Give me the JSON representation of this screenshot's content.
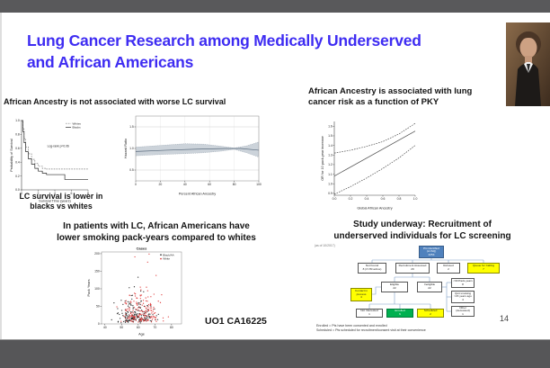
{
  "window": {
    "top_bar_color": "#59595b",
    "bottom_bar_color": "#565658",
    "slide_background": "#ffffff"
  },
  "slide": {
    "title_line1": "Lung Cancer Research among Medically Underserved",
    "title_line2": "and African Americans",
    "title_color": "#3e2cf2",
    "grant_label": "UO1 CA16225",
    "page_number": "14"
  },
  "sections": {
    "survival": {
      "heading": "African Ancestry is not associated with worse LC survival",
      "caption_line1": "LC survival is lower in",
      "caption_line2": "blacks vs whites"
    },
    "risk": {
      "heading_line1": "African Ancestry is associated with lung",
      "heading_line2": "cancer risk as a function of PKY"
    },
    "packyears": {
      "heading_line1": "In patients with LC, African Americans have",
      "heading_line2": "lower smoking pack-years compared to whites"
    },
    "recruitment": {
      "heading_line1": "Study underway: Recruitment of",
      "heading_line2": "underserved individuals for LC screening",
      "corner_note": "(as of 10/2017)",
      "footnote_line1": "Enrolled = Pts have been consented and enrolled",
      "footnote_line2": "Scheduled = Pts scheduled for recruitment/consent visit at their convenience"
    }
  },
  "chart_data": [
    {
      "id": "km",
      "type": "line",
      "step": true,
      "title": "",
      "xlabel": "Survival Time (years)",
      "ylabel": "Probability of Survival",
      "xlim": [
        0,
        8
      ],
      "ylim": [
        0,
        1
      ],
      "xticks": [
        0,
        2,
        4,
        6,
        8
      ],
      "yticks": [
        0,
        0.2,
        0.4,
        0.6,
        0.8,
        1
      ],
      "fmt": {
        "x": 0,
        "y": 1
      },
      "grid": false,
      "annotation": "Log-rank p=0.06",
      "legend_position": "top-right",
      "series": [
        {
          "name": "Whites",
          "style": "dashed",
          "color": "#7a7a7a",
          "points": [
            [
              0,
              1
            ],
            [
              0.15,
              0.88
            ],
            [
              0.3,
              0.74
            ],
            [
              0.5,
              0.62
            ],
            [
              0.8,
              0.52
            ],
            [
              1.2,
              0.44
            ],
            [
              1.6,
              0.38
            ],
            [
              2,
              0.34
            ],
            [
              2.5,
              0.31
            ],
            [
              3,
              0.3
            ],
            [
              8,
              0.3
            ]
          ]
        },
        {
          "name": "Blacks",
          "style": "solid",
          "color": "#2b2b2b",
          "points": [
            [
              0,
              1
            ],
            [
              0.15,
              0.84
            ],
            [
              0.3,
              0.68
            ],
            [
              0.5,
              0.55
            ],
            [
              0.8,
              0.45
            ],
            [
              1.2,
              0.37
            ],
            [
              1.6,
              0.31
            ],
            [
              2,
              0.27
            ],
            [
              2.5,
              0.24
            ],
            [
              3,
              0.22
            ],
            [
              5.2,
              0.15
            ],
            [
              8,
              0.15
            ]
          ]
        }
      ]
    },
    {
      "id": "hr",
      "type": "line",
      "title": "",
      "xlabel": "Percent African Ancestry",
      "ylabel": "Hazard Ratio",
      "xlim": [
        0,
        100
      ],
      "ylim": [
        0.25,
        1.75
      ],
      "xticks": [
        0,
        20,
        40,
        60,
        80,
        100
      ],
      "yticks": [
        0.5,
        1.0,
        1.5
      ],
      "fmt": {
        "x": 0,
        "y": 1
      },
      "grid": true,
      "frame": "box",
      "band": {
        "color": "#ccd3da",
        "upper": [
          [
            0,
            1.03
          ],
          [
            20,
            1.07
          ],
          [
            40,
            1.11
          ],
          [
            55,
            1.1
          ],
          [
            70,
            1.05
          ],
          [
            80,
            1.01
          ],
          [
            90,
            1.06
          ],
          [
            100,
            1.15
          ]
        ],
        "lower": [
          [
            0,
            0.83
          ],
          [
            20,
            0.86
          ],
          [
            40,
            0.88
          ],
          [
            55,
            0.9
          ],
          [
            70,
            0.94
          ],
          [
            80,
            0.98
          ],
          [
            90,
            0.9
          ],
          [
            100,
            0.8
          ]
        ]
      },
      "series": [
        {
          "name": "Hazard ratio",
          "style": "solid",
          "color": "#5a6b7d",
          "points": [
            [
              0,
              0.93
            ],
            [
              25,
              0.96
            ],
            [
              50,
              0.985
            ],
            [
              75,
              1.0
            ],
            [
              85,
              1.0
            ],
            [
              100,
              0.96
            ]
          ]
        }
      ]
    },
    {
      "id": "or",
      "type": "line",
      "title": "",
      "xlabel": "Global African Ancestry",
      "ylabel": "OR for 10 pack-year increase",
      "xlim": [
        0,
        1
      ],
      "ylim": [
        0.88,
        1.65
      ],
      "xticks": [
        0,
        0.2,
        0.4,
        0.6,
        0.8,
        1
      ],
      "yticks": [
        0.9,
        1.0,
        1.1,
        1.2,
        1.3,
        1.4,
        1.5,
        1.6
      ],
      "fmt": {
        "x": 1,
        "y": 1
      },
      "series": [
        {
          "name": "OR estimate",
          "style": "solid",
          "color": "#4d4d4d",
          "points": [
            [
              0,
              1.08
            ],
            [
              1,
              1.55
            ]
          ]
        },
        {
          "name": "upper 95% CI",
          "style": "dashed",
          "color": "#4d4d4d",
          "points": [
            [
              0,
              1.32
            ],
            [
              0.2,
              1.35
            ],
            [
              0.4,
              1.39
            ],
            [
              0.6,
              1.44
            ],
            [
              0.8,
              1.52
            ],
            [
              1,
              1.63
            ]
          ]
        },
        {
          "name": "lower 95% CI",
          "style": "dashed",
          "color": "#4d4d4d",
          "points": [
            [
              0,
              0.89
            ],
            [
              0.2,
              0.97
            ],
            [
              0.4,
              1.06
            ],
            [
              0.6,
              1.16
            ],
            [
              0.8,
              1.27
            ],
            [
              1,
              1.4
            ]
          ]
        }
      ]
    },
    {
      "id": "scatter",
      "type": "scatter",
      "title": "Cases",
      "xlabel": "Age",
      "ylabel": "Pack Years",
      "xlim": [
        38,
        86
      ],
      "ylim": [
        0,
        205
      ],
      "xticks": [
        40,
        50,
        60,
        70,
        80
      ],
      "yticks": [
        0,
        50,
        100,
        150,
        200
      ],
      "fmt": {
        "x": 0,
        "y": 0
      },
      "frame": "box",
      "legend_position": "top-right",
      "series": [
        {
          "name": "Black/AA",
          "color": "#1a1a1a",
          "n": 170,
          "seed": 97,
          "x_center": 58,
          "x_spread": 8.5,
          "y_scale": 30
        },
        {
          "name": "White",
          "color": "#dd2b2b",
          "n": 170,
          "seed": 211,
          "x_center": 62,
          "x_spread": 8.5,
          "y_scale": 40
        }
      ]
    }
  ],
  "flowchart": {
    "nodes": [
      {
        "id": "root",
        "label": "Pts identified (LCSQ)",
        "count": "4254",
        "color": "blue"
      },
      {
        "id": "notfound",
        "label": "Not Found",
        "count": "8 (3 VM active)",
        "color": "white"
      },
      {
        "id": "assessed",
        "label": "Recruitment Assessed",
        "count": "29",
        "color": "white"
      },
      {
        "id": "refused",
        "label": "Refused",
        "count": "2",
        "color": "white"
      },
      {
        "id": "queue",
        "label": "Queue for Calling",
        "count": "7",
        "color": "yellow"
      },
      {
        "id": "contact",
        "label": "Contact in process",
        "count": "4",
        "color": "yellow"
      },
      {
        "id": "eligible",
        "label": "Eligible",
        "count": "22",
        "color": "white"
      },
      {
        "id": "ineligible",
        "label": "Ineligible",
        "count": "22",
        "color": "white"
      },
      {
        "id": "packyears",
        "label": "<30 Pack-years",
        "count": "8",
        "color": "white"
      },
      {
        "id": "quit",
        "label": "Quit smoking >15 years ago",
        "count": "4",
        "color": "white"
      },
      {
        "id": "other",
        "label": "Other (deceased)",
        "count": "1",
        "color": "white"
      },
      {
        "id": "notinterested",
        "label": "Not Interested",
        "count": "1",
        "color": "white"
      },
      {
        "id": "enrolled",
        "label": "Enrolled",
        "count": "6",
        "color": "green"
      },
      {
        "id": "scheduled",
        "label": "Scheduled",
        "count": "2",
        "color": "yellow"
      }
    ]
  }
}
